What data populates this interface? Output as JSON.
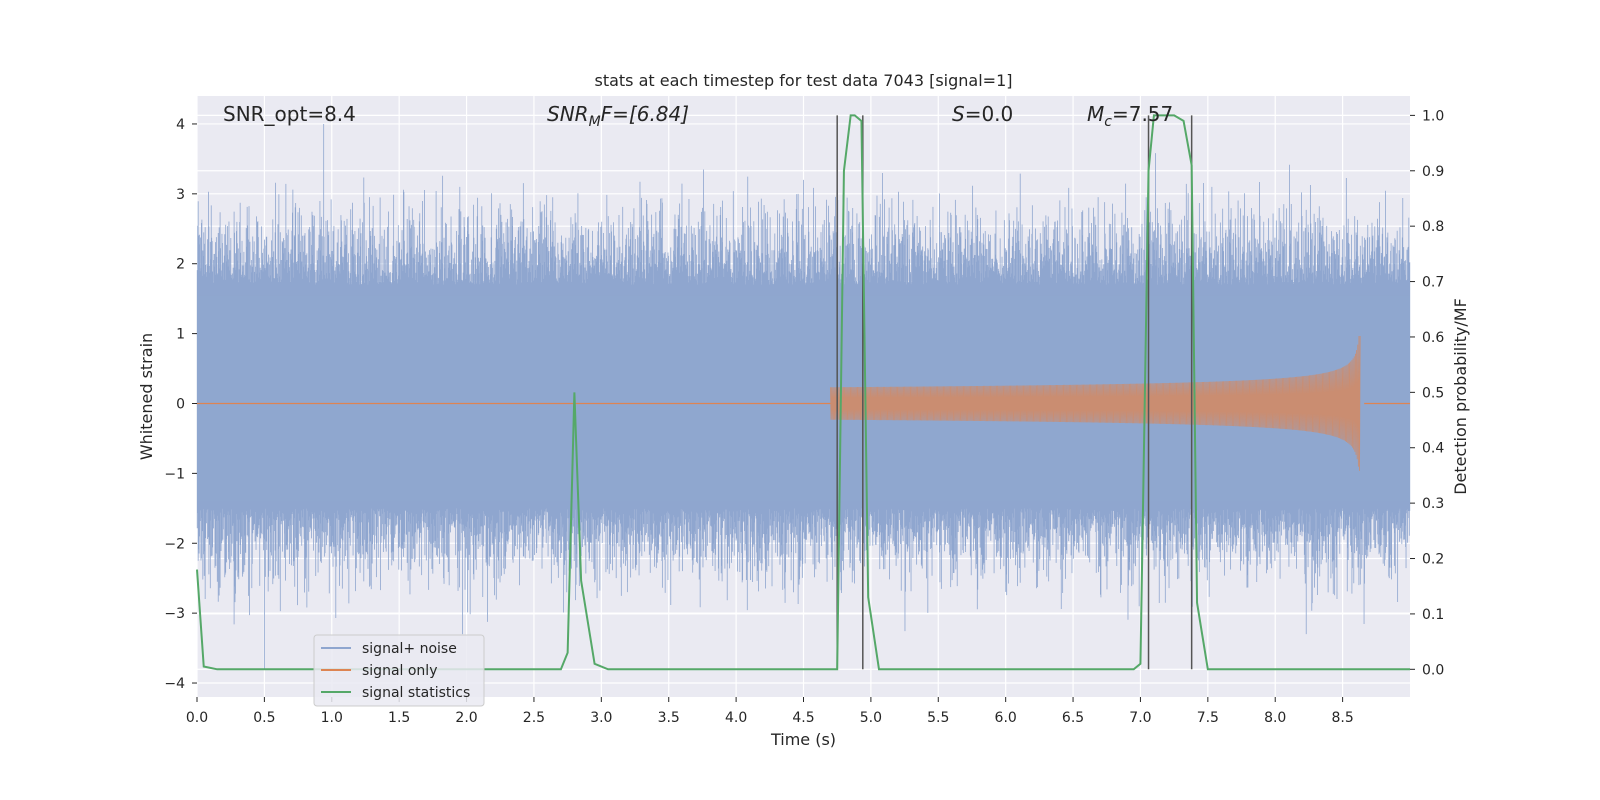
{
  "chart_data": {
    "type": "line",
    "title": "stats at each timestep for test data 7043 [signal=1]",
    "xlabel": "Time (s)",
    "ylabel_left": "Whitened strain",
    "ylabel_right": "Detection probability/MF",
    "xlim": [
      0,
      9.0
    ],
    "ylim_left": [
      -4.2,
      4.4
    ],
    "ylim_right": [
      -0.05,
      1.035
    ],
    "x_ticks": [
      0.0,
      0.5,
      1.0,
      1.5,
      2.0,
      2.5,
      3.0,
      3.5,
      4.0,
      4.5,
      5.0,
      5.5,
      6.0,
      6.5,
      7.0,
      7.5,
      8.0,
      8.5
    ],
    "x_tick_labels": [
      "0.0",
      "0.5",
      "1.0",
      "1.5",
      "2.0",
      "2.5",
      "3.0",
      "3.5",
      "4.0",
      "4.5",
      "5.0",
      "5.5",
      "6.0",
      "6.5",
      "7.0",
      "7.5",
      "8.0",
      "8.5"
    ],
    "y_left_ticks": [
      -4,
      -3,
      -2,
      -1,
      0,
      1,
      2,
      3,
      4
    ],
    "y_left_tick_labels": [
      "−4",
      "−3",
      "−2",
      "−1",
      "0",
      "1",
      "2",
      "3",
      "4"
    ],
    "y_right_ticks": [
      0.0,
      0.1,
      0.2,
      0.3,
      0.4,
      0.5,
      0.6,
      0.7,
      0.8,
      0.9,
      1.0
    ],
    "y_right_tick_labels": [
      "0.0",
      "0.1",
      "0.2",
      "0.3",
      "0.4",
      "0.5",
      "0.6",
      "0.7",
      "0.8",
      "0.9",
      "1.0"
    ],
    "grid": true,
    "legend_position": "lower-left",
    "annotations": {
      "snr_opt": "SNR_opt=8.4",
      "snr_mf_main": "SNR",
      "snr_mf_sub": "M",
      "snr_mf_rest": "F=[6.84]",
      "s_var": "S",
      "s_rest": "=0.0",
      "mc_var": "M",
      "mc_sub": "c",
      "mc_rest": "=7.57"
    },
    "vertical_lines_x": [
      4.75,
      4.94,
      7.06,
      7.38
    ],
    "series": [
      {
        "name": "signal+ noise",
        "axis": "left",
        "color": "#8fa6cf",
        "kind": "noise",
        "band_upper": 1.7,
        "band_lower": -1.5,
        "notable_peaks": [
          [
            0.94,
            4.0
          ],
          [
            0.5,
            -3.8
          ],
          [
            1.95,
            3.1
          ],
          [
            1.97,
            -3.3
          ],
          [
            4.5,
            3.2
          ],
          [
            7.53,
            3.1
          ],
          [
            8.23,
            -3.3
          ]
        ]
      },
      {
        "name": "signal only",
        "axis": "left",
        "color": "#dd8452",
        "kind": "chirp",
        "start_x": 4.7,
        "peak_x": 8.63,
        "peak_amplitude": 1.05,
        "end_x": 8.66
      },
      {
        "name": "signal statistics",
        "axis": "right",
        "color": "#55a868",
        "x": [
          0.0,
          0.05,
          0.15,
          2.7,
          2.75,
          2.8,
          2.85,
          2.95,
          3.05,
          4.75,
          4.8,
          4.85,
          4.88,
          4.93,
          4.98,
          5.06,
          6.95,
          7.0,
          7.06,
          7.1,
          7.25,
          7.32,
          7.38,
          7.42,
          7.5,
          9.0
        ],
        "values": [
          0.18,
          0.005,
          0.0,
          0.0,
          0.03,
          0.5,
          0.16,
          0.01,
          0.0,
          0.0,
          0.9,
          1.0,
          1.0,
          0.99,
          0.13,
          0.0,
          0.0,
          0.01,
          0.9,
          1.0,
          1.0,
          0.99,
          0.91,
          0.12,
          0.0,
          0.0
        ]
      }
    ]
  }
}
